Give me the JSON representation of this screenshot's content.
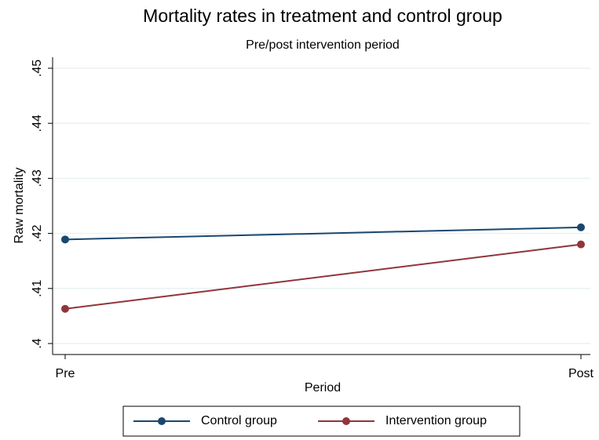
{
  "chart_data": {
    "type": "line",
    "title": "Mortality rates in treatment and control group",
    "subtitle": "Pre/post intervention period",
    "x_label": "Period",
    "y_label": "Raw mortality",
    "categories": [
      "Pre",
      "Post"
    ],
    "series": [
      {
        "name": "Control group",
        "color": "#1a476f",
        "values": [
          0.4189,
          0.4211
        ]
      },
      {
        "name": "Intervention group",
        "color": "#90353b",
        "values": [
          0.4063,
          0.418
        ]
      }
    ],
    "ylim": [
      0.4,
      0.45
    ],
    "yticks": [
      {
        "value": 0.4,
        "label": ".4"
      },
      {
        "value": 0.41,
        "label": ".41"
      },
      {
        "value": 0.42,
        "label": ".42"
      },
      {
        "value": 0.43,
        "label": ".43"
      },
      {
        "value": 0.44,
        "label": ".44"
      },
      {
        "value": 0.45,
        "label": ".45"
      }
    ],
    "grid": true,
    "legend": "bottom"
  }
}
